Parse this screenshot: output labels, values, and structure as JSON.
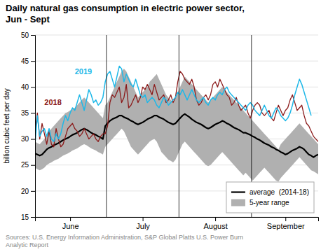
{
  "chart_data": {
    "type": "line",
    "title": "Daily natural gas consumption in electric power sector,\nJun - Sept",
    "ylabel": "billion cubic feet per day",
    "source": "Sources: U.S. Energy Information Administration, S&P Global Platts U.S. Power Burn\nAnalytic Report",
    "categories": [
      null,
      null,
      null,
      null,
      null,
      null,
      null,
      null,
      null,
      null,
      null,
      null,
      null,
      null,
      null,
      "June",
      null,
      null,
      null,
      null,
      null,
      null,
      null,
      null,
      null,
      null,
      null,
      null,
      null,
      null,
      null,
      null,
      null,
      null,
      null,
      null,
      null,
      null,
      null,
      null,
      null,
      null,
      null,
      null,
      null,
      null,
      "July",
      null,
      null,
      null,
      null,
      null,
      null,
      null,
      null,
      null,
      null,
      null,
      null,
      null,
      null,
      null,
      null,
      null,
      null,
      null,
      null,
      null,
      null,
      null,
      null,
      null,
      null,
      null,
      null,
      null,
      null,
      "August",
      null,
      null,
      null,
      null,
      null,
      null,
      null,
      null,
      null,
      null,
      null,
      null,
      null,
      null,
      null,
      null,
      null,
      null,
      null,
      null,
      null,
      null,
      null,
      null,
      null,
      null,
      null,
      null,
      null,
      "September",
      null,
      null,
      null,
      null,
      null,
      null,
      null,
      null,
      null,
      null,
      null,
      null,
      null,
      null
    ],
    "ylim": [
      15,
      50
    ],
    "yticks": [
      15,
      20,
      25,
      30,
      35,
      40,
      45,
      50
    ],
    "grid": true,
    "legend": "lower right",
    "vlines": [
      30.5,
      61.5,
      92.5
    ],
    "series": [
      {
        "name": "average  (2014-18)",
        "type": "line",
        "color": "#000000",
        "values": [
          27.2,
          27.0,
          26.8,
          27.0,
          27.5,
          28.0,
          28.3,
          28.5,
          28.8,
          29.0,
          29.2,
          29.5,
          29.8,
          30.0,
          30.2,
          30.5,
          30.8,
          31.0,
          31.2,
          31.5,
          31.8,
          32.0,
          31.8,
          31.5,
          31.2,
          31.0,
          30.8,
          30.5,
          30.3,
          30.0,
          32.5,
          33.0,
          33.5,
          33.8,
          34.0,
          34.2,
          34.5,
          34.5,
          34.2,
          34.0,
          33.8,
          33.5,
          33.3,
          33.0,
          32.8,
          33.0,
          33.2,
          33.5,
          33.8,
          34.0,
          34.2,
          34.5,
          34.5,
          34.2,
          34.0,
          33.8,
          33.5,
          33.2,
          33.0,
          32.8,
          33.0,
          33.5,
          34.0,
          34.5,
          34.8,
          34.5,
          34.2,
          33.8,
          33.5,
          33.2,
          33.0,
          32.8,
          32.5,
          32.2,
          32.0,
          32.2,
          32.5,
          32.8,
          33.0,
          33.2,
          33.5,
          33.3,
          33.0,
          32.8,
          32.5,
          32.2,
          32.0,
          31.8,
          31.5,
          31.2,
          31.2,
          31.0,
          30.8,
          30.5,
          30.3,
          30.0,
          29.8,
          29.5,
          29.2,
          29.0,
          28.8,
          28.5,
          28.3,
          28.0,
          27.8,
          27.5,
          27.3,
          27.0,
          27.2,
          27.5,
          27.8,
          28.0,
          28.2,
          28.5,
          28.3,
          28.0,
          27.5,
          27.0,
          26.8,
          26.5,
          26.8,
          27.0
        ]
      },
      {
        "name": "5-year range",
        "type": "area",
        "color": "#b0b0b0",
        "upper": [
          29.5,
          29.2,
          29.0,
          29.5,
          30.0,
          31.0,
          31.5,
          32.0,
          32.5,
          33.0,
          33.5,
          34.0,
          34.5,
          35.0,
          35.2,
          35.5,
          35.8,
          36.0,
          36.5,
          37.0,
          37.5,
          38.0,
          37.5,
          37.0,
          36.5,
          36.0,
          35.5,
          35.0,
          34.5,
          34.0,
          36.5,
          37.0,
          38.0,
          39.0,
          40.0,
          41.0,
          42.0,
          43.0,
          43.5,
          43.0,
          42.0,
          41.0,
          40.0,
          39.0,
          38.0,
          38.5,
          39.0,
          39.5,
          40.0,
          41.0,
          41.5,
          42.0,
          42.5,
          41.5,
          40.5,
          39.5,
          38.5,
          38.0,
          37.5,
          37.0,
          38.0,
          39.0,
          40.0,
          41.0,
          42.0,
          41.5,
          41.0,
          40.5,
          40.0,
          39.5,
          39.0,
          38.5,
          38.0,
          37.5,
          37.0,
          37.5,
          38.0,
          38.5,
          39.0,
          39.5,
          40.0,
          39.5,
          39.0,
          38.5,
          38.0,
          37.5,
          37.0,
          36.5,
          36.0,
          35.5,
          35.0,
          34.5,
          34.0,
          33.5,
          33.0,
          32.5,
          32.0,
          31.5,
          31.0,
          30.5,
          30.0,
          29.5,
          29.0,
          28.5,
          28.0,
          29.0,
          29.5,
          30.0,
          30.5,
          31.0,
          31.5,
          32.0,
          32.5,
          33.0,
          32.5,
          32.0,
          31.5,
          31.0,
          30.5,
          30.0,
          29.5,
          29.0
        ],
        "lower": [
          24.5,
          24.2,
          24.0,
          24.2,
          24.5,
          25.0,
          25.3,
          25.5,
          25.8,
          26.0,
          26.2,
          26.5,
          26.8,
          27.0,
          27.2,
          27.5,
          27.8,
          28.0,
          28.2,
          28.5,
          28.8,
          29.0,
          28.8,
          28.5,
          28.2,
          28.0,
          27.8,
          27.5,
          27.3,
          27.0,
          28.5,
          29.0,
          29.5,
          30.0,
          30.5,
          31.0,
          31.5,
          32.0,
          31.5,
          30.5,
          29.5,
          28.5,
          28.0,
          27.5,
          27.0,
          27.5,
          28.0,
          28.5,
          29.0,
          29.5,
          29.8,
          30.0,
          29.5,
          28.5,
          27.5,
          27.0,
          26.5,
          26.0,
          25.8,
          25.5,
          26.0,
          27.0,
          28.0,
          29.0,
          29.5,
          29.0,
          28.5,
          28.0,
          27.5,
          27.0,
          26.5,
          26.0,
          25.5,
          25.0,
          24.8,
          25.0,
          25.5,
          26.0,
          26.5,
          27.0,
          27.5,
          27.0,
          26.5,
          26.0,
          25.5,
          25.0,
          24.5,
          24.0,
          23.5,
          23.0,
          23.5,
          23.0,
          22.5,
          22.0,
          22.5,
          23.0,
          23.5,
          24.0,
          24.5,
          24.0,
          23.5,
          23.0,
          22.5,
          22.0,
          21.8,
          22.5,
          23.0,
          23.5,
          24.0,
          24.5,
          25.0,
          25.5,
          26.0,
          26.5,
          26.0,
          25.5,
          25.0,
          24.5,
          24.0,
          23.8,
          23.5,
          23.2
        ]
      },
      {
        "type": "line",
        "color": "#8b1a1a",
        "values": [
          31.5,
          35.0,
          30.0,
          33.0,
          31.0,
          29.0,
          31.5,
          29.0,
          28.5,
          32.0,
          30.0,
          28.5,
          29.0,
          30.5,
          32.0,
          32.5,
          33.0,
          32.0,
          31.5,
          30.5,
          31.0,
          32.0,
          31.0,
          30.0,
          30.5,
          31.0,
          30.0,
          29.5,
          30.5,
          31.0,
          31.0,
          32.5,
          37.0,
          38.5,
          38.0,
          39.0,
          40.0,
          37.0,
          38.0,
          40.5,
          36.0,
          36.5,
          37.5,
          38.5,
          37.0,
          38.0,
          40.0,
          39.5,
          40.5,
          39.5,
          38.5,
          40.5,
          39.0,
          37.5,
          38.0,
          38.5,
          37.0,
          37.5,
          38.5,
          37.0,
          38.0,
          41.0,
          43.0,
          42.5,
          41.5,
          41.0,
          40.5,
          41.5,
          40.0,
          37.5,
          36.5,
          37.0,
          38.0,
          38.5,
          37.5,
          38.5,
          40.5,
          41.0,
          40.0,
          41.5,
          40.5,
          39.5,
          38.5,
          38.0,
          36.5,
          37.0,
          38.0,
          36.5,
          35.5,
          36.0,
          36.5,
          35.0,
          34.0,
          35.5,
          36.5,
          37.0,
          36.5,
          35.0,
          34.5,
          35.0,
          35.5,
          34.0,
          33.5,
          35.0,
          36.5,
          35.5,
          34.5,
          35.5,
          36.0,
          37.5,
          38.5,
          37.0,
          35.5,
          36.0,
          36.5,
          34.5,
          33.0,
          32.5,
          31.5,
          30.5,
          30.0,
          29.5
        ]
      },
      {
        "type": "line",
        "color": "#1eb8e8",
        "values": [
          29.0,
          34.5,
          30.5,
          31.5,
          32.0,
          30.5,
          32.0,
          30.0,
          29.5,
          31.0,
          30.0,
          31.0,
          33.0,
          34.5,
          33.5,
          35.0,
          36.0,
          35.5,
          37.0,
          38.5,
          37.0,
          35.5,
          37.5,
          39.5,
          38.5,
          37.0,
          37.5,
          36.5,
          37.0,
          38.0,
          41.0,
          42.5,
          43.0,
          41.5,
          40.0,
          42.0,
          44.0,
          43.5,
          41.0,
          42.5,
          41.5,
          40.5,
          40.0,
          41.5,
          40.0,
          38.5,
          38.0,
          38.5,
          37.0,
          37.5,
          38.0,
          37.5,
          36.5,
          36.0,
          37.0,
          38.0,
          37.5,
          36.5,
          37.0,
          37.5,
          38.0,
          39.0,
          38.5,
          39.5,
          38.5,
          37.5,
          38.5,
          39.5,
          38.5,
          37.5,
          37.0,
          37.5,
          38.0,
          37.0,
          36.5,
          37.5,
          38.0,
          37.5,
          38.5,
          39.0,
          38.5,
          39.5,
          40.0,
          39.0,
          38.5,
          38.0,
          37.5,
          37.0,
          36.5,
          36.0,
          35.5,
          36.5,
          37.0,
          36.5,
          35.5,
          35.0,
          34.5,
          35.5,
          36.5,
          35.5,
          34.5,
          34.0,
          35.0,
          36.0,
          35.5,
          34.5,
          34.0,
          33.5,
          34.0,
          35.0,
          36.5,
          38.5,
          40.0,
          41.5,
          40.5,
          39.0,
          37.5,
          36.0,
          34.5,
          null,
          null,
          null
        ]
      }
    ],
    "annotations": [
      {
        "text": "2018",
        "x": 4,
        "y": 36.5,
        "color": "#8b1a1a"
      },
      {
        "text": "2019",
        "x": 17,
        "y": 42.5,
        "color": "#1eb8e8"
      }
    ]
  }
}
